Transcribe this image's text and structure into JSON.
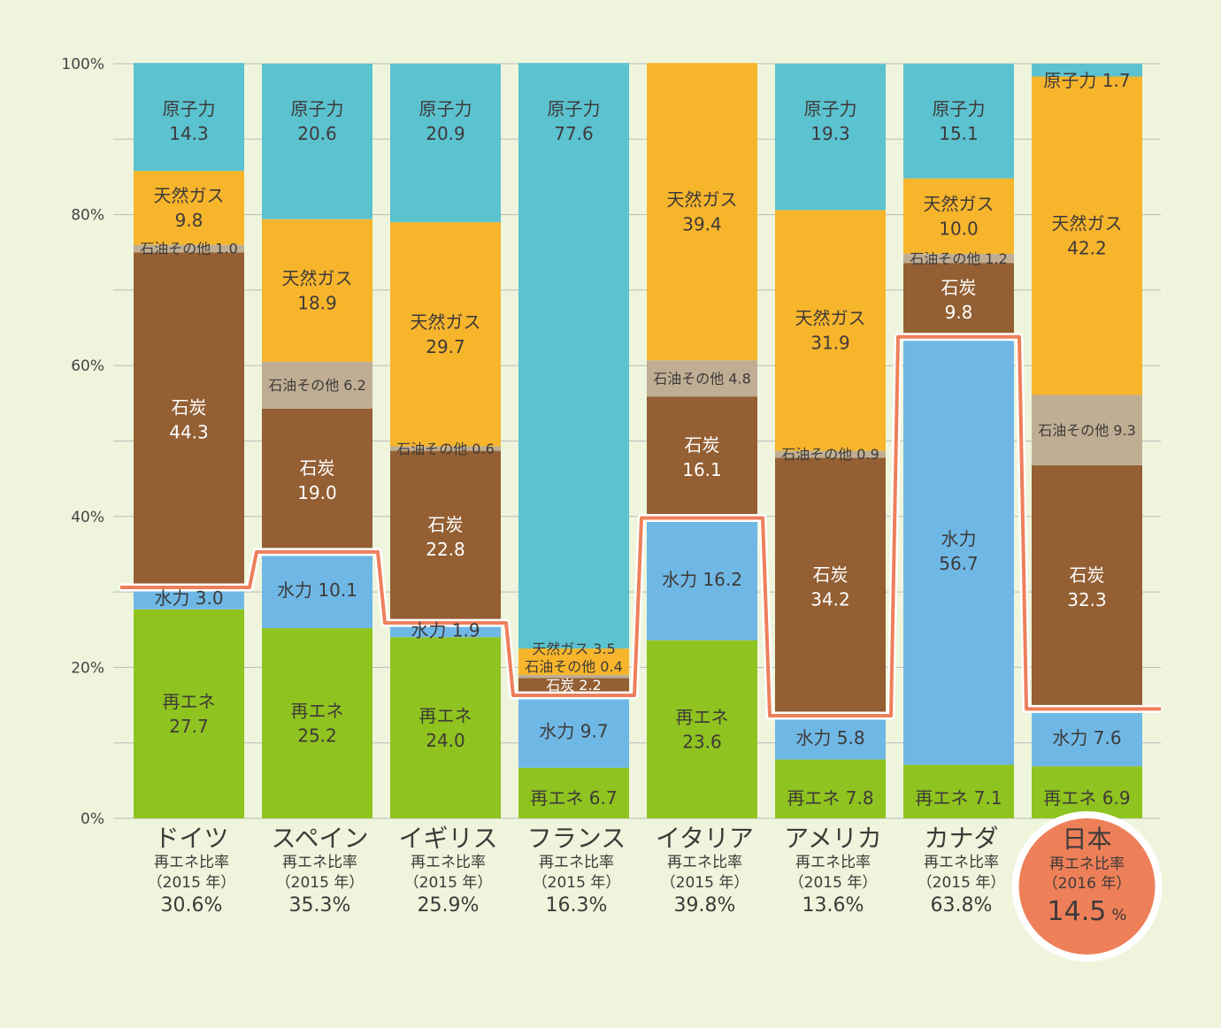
{
  "chart_data": {
    "type": "bar",
    "stacked": true,
    "ylim": [
      0,
      100
    ],
    "yticks": [
      "0%",
      "20%",
      "40%",
      "60%",
      "80%",
      "100%"
    ],
    "colors": {
      "renewable": "#8fc31f",
      "hydro": "#6fb8e6",
      "coal": "#935f33",
      "oil": "#bfae94",
      "gas": "#f7b52c",
      "nuclear": "#5bc2d0",
      "line": "#ee7f5b",
      "grid": "#bbbbbb",
      "highlight": "#ee8059"
    },
    "series_order": [
      "renewable",
      "hydro",
      "coal",
      "oil",
      "gas",
      "nuclear"
    ],
    "series_names": {
      "renewable": "再エネ",
      "hydro": "水力",
      "coal": "石炭",
      "oil": "石油その他",
      "gas": "天然ガス",
      "nuclear": "原子力"
    },
    "ratio_label": "再エネ比率",
    "countries": [
      {
        "name": "ドイツ",
        "year": "（2015 年）",
        "ratio": "30.6%",
        "renewable_share": 30.6,
        "values": {
          "renewable": 27.7,
          "hydro": 3.0,
          "coal": 44.3,
          "oil": 1.0,
          "gas": 9.8,
          "nuclear": 14.3
        },
        "labels": {
          "renewable": [
            "再エネ",
            "27.7"
          ],
          "hydro": [
            "水力 3.0"
          ],
          "coal": [
            "石炭",
            "44.3"
          ],
          "oil": [
            "石油その他 1.0"
          ],
          "gas": [
            "天然ガス",
            "9.8"
          ],
          "nuclear": [
            "原子力",
            "14.3"
          ]
        }
      },
      {
        "name": "スペイン",
        "year": "（2015 年）",
        "ratio": "35.3%",
        "renewable_share": 35.3,
        "values": {
          "renewable": 25.2,
          "hydro": 10.1,
          "coal": 19.0,
          "oil": 6.2,
          "gas": 18.9,
          "nuclear": 20.6
        },
        "labels": {
          "renewable": [
            "再エネ",
            "25.2"
          ],
          "hydro": [
            "水力 10.1"
          ],
          "coal": [
            "石炭",
            "19.0"
          ],
          "oil": [
            "石油その他 6.2"
          ],
          "gas": [
            "天然ガス",
            "18.9"
          ],
          "nuclear": [
            "原子力",
            "20.6"
          ]
        }
      },
      {
        "name": "イギリス",
        "year": "（2015 年）",
        "ratio": "25.9%",
        "renewable_share": 25.9,
        "values": {
          "renewable": 24.0,
          "hydro": 1.9,
          "coal": 22.8,
          "oil": 0.6,
          "gas": 29.7,
          "nuclear": 20.9
        },
        "labels": {
          "renewable": [
            "再エネ",
            "24.0"
          ],
          "hydro": [
            "水力 1.9"
          ],
          "coal": [
            "石炭",
            "22.8"
          ],
          "oil": [
            "石油その他 0.6"
          ],
          "gas": [
            "天然ガス",
            "29.7"
          ],
          "nuclear": [
            "原子力",
            "20.9"
          ]
        }
      },
      {
        "name": "フランス",
        "year": "（2015 年）",
        "ratio": "16.3%",
        "renewable_share": 16.3,
        "values": {
          "renewable": 6.7,
          "hydro": 9.7,
          "coal": 2.2,
          "oil": 0.4,
          "gas": 3.5,
          "nuclear": 77.6
        },
        "labels": {
          "renewable": [
            "再エネ 6.7"
          ],
          "hydro": [
            "水力 9.7"
          ],
          "coal": [
            "石炭 2.2"
          ],
          "oil": [
            "石油その他 0.4"
          ],
          "gas": [
            "天然ガス 3.5"
          ],
          "nuclear": [
            "原子力",
            "77.6"
          ]
        }
      },
      {
        "name": "イタリア",
        "year": "（2015 年）",
        "ratio": "39.8%",
        "renewable_share": 39.8,
        "values": {
          "renewable": 23.6,
          "hydro": 16.2,
          "coal": 16.1,
          "oil": 4.8,
          "gas": 39.4,
          "nuclear": 0
        },
        "labels": {
          "renewable": [
            "再エネ",
            "23.6"
          ],
          "hydro": [
            "水力 16.2"
          ],
          "coal": [
            "石炭",
            "16.1"
          ],
          "oil": [
            "石油その他 4.8"
          ],
          "gas": [
            "天然ガス",
            "39.4"
          ]
        }
      },
      {
        "name": "アメリカ",
        "year": "（2015 年）",
        "ratio": "13.6%",
        "renewable_share": 13.6,
        "values": {
          "renewable": 7.8,
          "hydro": 5.8,
          "coal": 34.2,
          "oil": 0.9,
          "gas": 31.9,
          "nuclear": 19.3
        },
        "labels": {
          "renewable": [
            "再エネ 7.8"
          ],
          "hydro": [
            "水力 5.8"
          ],
          "coal": [
            "石炭",
            "34.2"
          ],
          "oil": [
            "石油その他 0.9"
          ],
          "gas": [
            "天然ガス",
            "31.9"
          ],
          "nuclear": [
            "原子力",
            "19.3"
          ]
        }
      },
      {
        "name": "カナダ",
        "year": "（2015 年）",
        "ratio": "63.8%",
        "renewable_share": 63.8,
        "values": {
          "renewable": 7.1,
          "hydro": 56.7,
          "coal": 9.8,
          "oil": 1.2,
          "gas": 10.0,
          "nuclear": 15.1
        },
        "labels": {
          "renewable": [
            "再エネ 7.1"
          ],
          "hydro": [
            "水力",
            "56.7"
          ],
          "coal": [
            "石炭",
            "9.8"
          ],
          "oil": [
            "石油その他 1.2"
          ],
          "gas": [
            "天然ガス",
            "10.0"
          ],
          "nuclear": [
            "原子力",
            "15.1"
          ]
        }
      },
      {
        "name": "日本",
        "year": "（2016 年）",
        "ratio_num": "14.5",
        "ratio_unit": "%",
        "renewable_share": 14.5,
        "highlight": true,
        "values": {
          "renewable": 6.9,
          "hydro": 7.6,
          "coal": 32.3,
          "oil": 9.3,
          "gas": 42.2,
          "nuclear": 1.7
        },
        "labels": {
          "renewable": [
            "再エネ 6.9"
          ],
          "hydro": [
            "水力 7.6"
          ],
          "coal": [
            "石炭",
            "32.3"
          ],
          "oil": [
            "石油その他 9.3"
          ],
          "gas": [
            "天然ガス",
            "42.2"
          ],
          "nuclear": [
            "原子力 1.7"
          ]
        }
      }
    ]
  }
}
